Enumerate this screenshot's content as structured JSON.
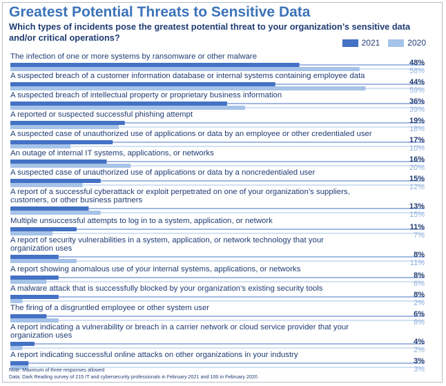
{
  "chart_data": {
    "type": "bar",
    "orientation": "horizontal",
    "title": "Greatest Potential Threats to Sensitive Data",
    "subtitle": "Which types of incidents pose the greatest potential threat to your organization’s sensitive data and/or critical operations?",
    "legend": [
      {
        "name": "2021",
        "color": "#4472c4"
      },
      {
        "name": "2020",
        "color": "#a6c3e8"
      }
    ],
    "legend_position": "top-right",
    "value_suffix": "%",
    "xlim": [
      0,
      58
    ],
    "categories": [
      [
        "The infection of one or more systems by ransomware or other malware"
      ],
      [
        "A suspected breach of a customer information database or internal systems containing employee data"
      ],
      [
        "A suspected breach of intellectual property or proprietary business information"
      ],
      [
        "A reported or suspected successful phishing attempt"
      ],
      [
        "A suspected case of unauthorized use of applications or data by an employee or other credentialed user"
      ],
      [
        "An outage of internal IT systems, applications, or networks"
      ],
      [
        "A suspected case of unauthorized use of applications or data by a noncredentialed user"
      ],
      [
        "A report of a successful cyberattack or exploit perpetrated on one of your organization’s suppliers,",
        "customers, or other business partners"
      ],
      [
        "Multiple unsuccessful attempts to log in to a system, application, or network"
      ],
      [
        "A report of security vulnerabilities in a system, application, or network technology that your",
        "organization uses"
      ],
      [
        "A report showing anomalous use of your internal systems, applications, or networks"
      ],
      [
        "A malware attack that is successfully blocked by your organization’s existing security tools"
      ],
      [
        "The firing of a disgruntled employee or other system user"
      ],
      [
        "A report indicating a vulnerability or breach in a carrier network or cloud service provider that your",
        "organization uses"
      ],
      [
        "A report indicating successful online attacks on other organizations in your industry"
      ]
    ],
    "series": [
      {
        "name": "2021",
        "values": [
          48,
          44,
          36,
          19,
          17,
          16,
          15,
          13,
          11,
          8,
          8,
          8,
          6,
          4,
          3
        ]
      },
      {
        "name": "2020",
        "values": [
          58,
          59,
          39,
          18,
          10,
          20,
          12,
          15,
          7,
          11,
          6,
          2,
          8,
          2,
          3
        ]
      }
    ],
    "grid": false
  },
  "colors": {
    "title": "#3b73b9",
    "text": "#1f3b73",
    "series_2021": "#4472c4",
    "series_2020": "#a6c3e8",
    "value_2020": "#8fb0dc"
  },
  "footnotes": [
    "Note: Maximum of three responses allowed",
    "Data: Dark Reading survey of 215 IT and cybersecurity professionals in February 2021 and 100 in February 2020"
  ]
}
